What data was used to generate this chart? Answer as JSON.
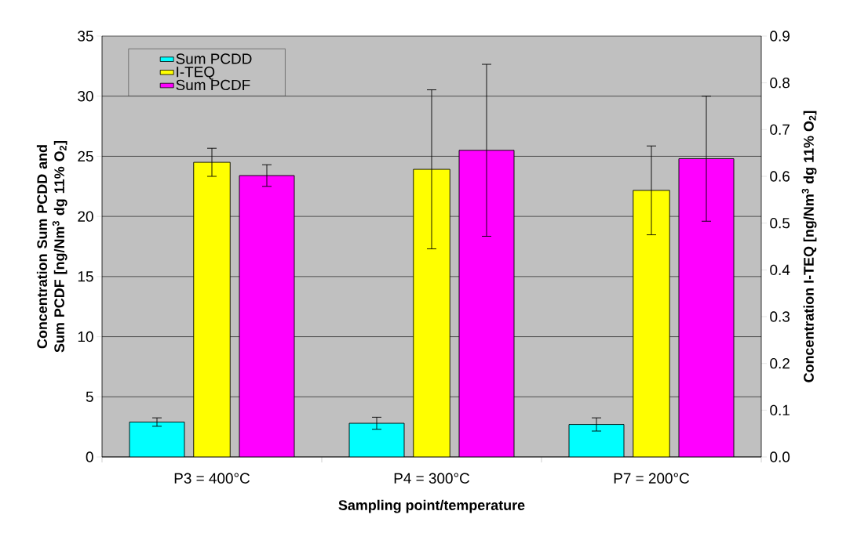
{
  "chart_data": {
    "type": "bar",
    "categories": [
      "P3 = 400°C",
      "P4 = 300°C",
      "P7 = 200°C"
    ],
    "xlabel": "Sampling point/temperature",
    "ylabel": "Concentration Sum PCDD and Sum PCDF [ng/Nm$^{3}$ dg 11% O$_{2}$]",
    "y2label": "Concentration I-TEQ [ng/Nm$^{3}$ dg 11% O$_{2}$]",
    "ylim": [
      0,
      35
    ],
    "yticks": [
      0,
      5,
      10,
      15,
      20,
      25,
      30,
      35
    ],
    "y2lim": [
      0,
      0.9
    ],
    "y2ticks": [
      {
        "value": 0,
        "label": "0.0"
      },
      0.1,
      0.2,
      0.3,
      0.4,
      0.5,
      0.6,
      0.7,
      0.8,
      0.9
    ],
    "grid": "y",
    "legend": "top left",
    "series": [
      {
        "name": "Sum PCDD",
        "color": "#00ffff",
        "values": [
          2.9,
          2.8,
          2.7
        ],
        "errors": [
          0.35,
          0.5,
          0.55
        ]
      },
      {
        "name": "I-TEQ",
        "color": "#ffff00",
        "axis": "y2",
        "values": [
          0.63,
          0.615,
          0.57
        ],
        "errors": [
          0.03,
          0.17,
          0.095
        ]
      },
      {
        "name": "Sum PCDF",
        "color": "#ff00ff",
        "values": [
          23.4,
          25.5,
          24.8
        ],
        "errors": [
          0.9,
          7.15,
          5.2
        ]
      }
    ]
  }
}
